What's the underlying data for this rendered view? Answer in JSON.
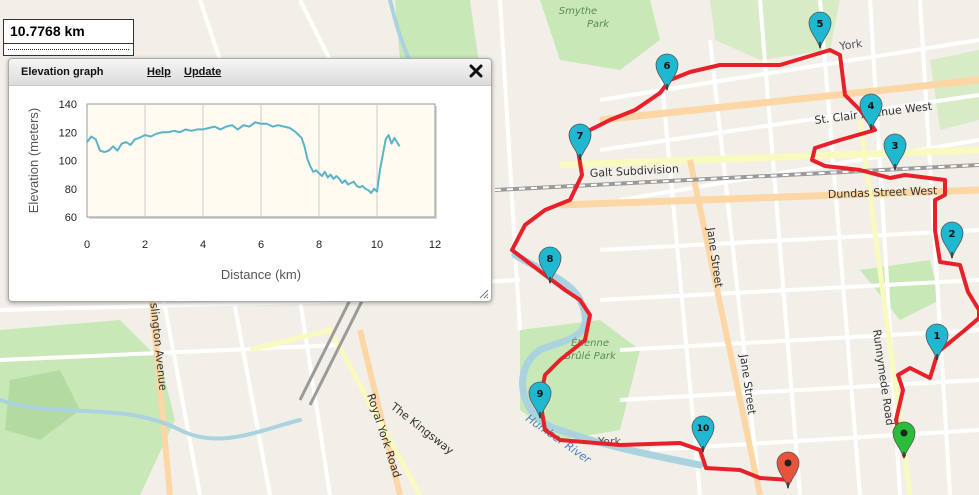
{
  "distance_display": "10.7768 km",
  "elevation_panel": {
    "title": "Elevation graph",
    "help_label": "Help",
    "update_label": "Update",
    "close_icon": "close-icon"
  },
  "chart_data": {
    "type": "line",
    "xlabel": "Distance (km)",
    "ylabel": "Elevation (meters)",
    "xlim": [
      0,
      12
    ],
    "ylim": [
      60,
      140
    ],
    "xticks": [
      0,
      2,
      4,
      6,
      8,
      10,
      12
    ],
    "yticks": [
      60,
      80,
      100,
      120,
      140
    ],
    "grid": "vertical",
    "line_color": "#5ab4c8",
    "series": [
      {
        "x": [
          0,
          0.15,
          0.3,
          0.45,
          0.6,
          0.75,
          0.9,
          1.05,
          1.2,
          1.35,
          1.5,
          1.65,
          1.8,
          2.0,
          2.2,
          2.4,
          2.6,
          2.8,
          3.0,
          3.2,
          3.4,
          3.6,
          3.8,
          4.0,
          4.2,
          4.4,
          4.6,
          4.8,
          5.0,
          5.2,
          5.4,
          5.6,
          5.8,
          6.0,
          6.2,
          6.4,
          6.6,
          6.8,
          7.0,
          7.2,
          7.4,
          7.5,
          7.6,
          7.7,
          7.8,
          7.9,
          8.0,
          8.1,
          8.2,
          8.3,
          8.4,
          8.5,
          8.6,
          8.7,
          8.8,
          8.9,
          9.0,
          9.1,
          9.2,
          9.3,
          9.4,
          9.5,
          9.6,
          9.7,
          9.8,
          9.9,
          10.0,
          10.1,
          10.2,
          10.3,
          10.4,
          10.5,
          10.6,
          10.78
        ],
        "y": [
          113,
          117,
          115,
          107,
          106,
          107,
          110,
          107,
          112,
          113,
          111,
          115,
          116,
          118,
          117,
          119,
          120,
          120,
          121,
          120,
          122,
          121,
          122,
          122,
          123,
          124,
          122,
          124,
          125,
          122,
          125,
          124,
          127,
          126,
          126,
          124,
          125,
          124,
          123,
          120,
          116,
          110,
          101,
          96,
          92,
          93,
          91,
          89,
          92,
          88,
          90,
          87,
          89,
          87,
          84,
          86,
          83,
          84,
          85,
          82,
          81,
          82,
          80,
          79,
          77,
          80,
          78,
          93,
          104,
          115,
          118,
          112,
          116,
          110
        ]
      }
    ]
  },
  "map": {
    "labels": {
      "park_smythe": [
        "Smythe",
        "Park"
      ],
      "park_etienne": [
        "Étienne",
        "Brûlé Park"
      ],
      "galt_subdivision": "Galt Subdivision",
      "st_clair": "St. Clair Avenue West",
      "dundas": "Dundas Street West",
      "jane_upper": "Jane Street",
      "jane_lower": "Jane Street",
      "runnymede": "Runnymede Road",
      "royal_york": "Royal York Road",
      "kingsway": "The Kingsway",
      "islington": "Islington Avenue",
      "york_north": "York",
      "york_south": "York",
      "humber_river": "Humber River"
    },
    "colors": {
      "route": "#e8202a",
      "waypoint_marker": "#1fb8d0",
      "start_marker": "#2bbd3a",
      "end_marker": "#e8533c",
      "water": "#aad3df",
      "park": "#c8e8b8",
      "road": "#ffffff",
      "land": "#f2efe9"
    },
    "markers": [
      {
        "label": "1",
        "type": "waypoint"
      },
      {
        "label": "2",
        "type": "waypoint"
      },
      {
        "label": "3",
        "type": "waypoint"
      },
      {
        "label": "4",
        "type": "waypoint"
      },
      {
        "label": "5",
        "type": "waypoint"
      },
      {
        "label": "6",
        "type": "waypoint"
      },
      {
        "label": "7",
        "type": "waypoint"
      },
      {
        "label": "8",
        "type": "waypoint"
      },
      {
        "label": "9",
        "type": "waypoint"
      },
      {
        "label": "10",
        "type": "waypoint"
      },
      {
        "label": "",
        "type": "start"
      },
      {
        "label": "",
        "type": "end"
      }
    ]
  }
}
